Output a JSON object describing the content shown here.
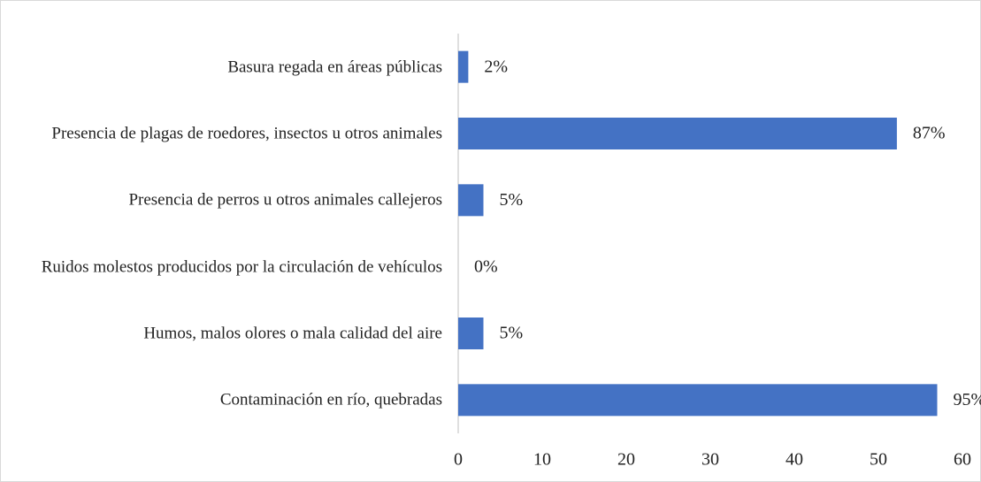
{
  "chart_data": {
    "type": "bar",
    "orientation": "horizontal",
    "categories": [
      "Basura regada en áreas públicas",
      "Presencia de plagas de roedores, insectos u otros animales",
      "Presencia de perros u otros animales callejeros",
      "Ruidos molestos producidos por la circulación de vehículos",
      "Humos, malos olores o mala calidad del aire",
      "Contaminación en río, quebradas"
    ],
    "values": [
      1.2,
      52.2,
      3,
      0,
      3,
      57
    ],
    "value_labels": [
      "2%",
      "87%",
      "5%",
      "0%",
      "5%",
      "95%"
    ],
    "color": "#4472c4",
    "xlim": [
      0,
      60
    ],
    "xticks": [
      0,
      10,
      20,
      30,
      40,
      50,
      60
    ],
    "grid": false
  }
}
